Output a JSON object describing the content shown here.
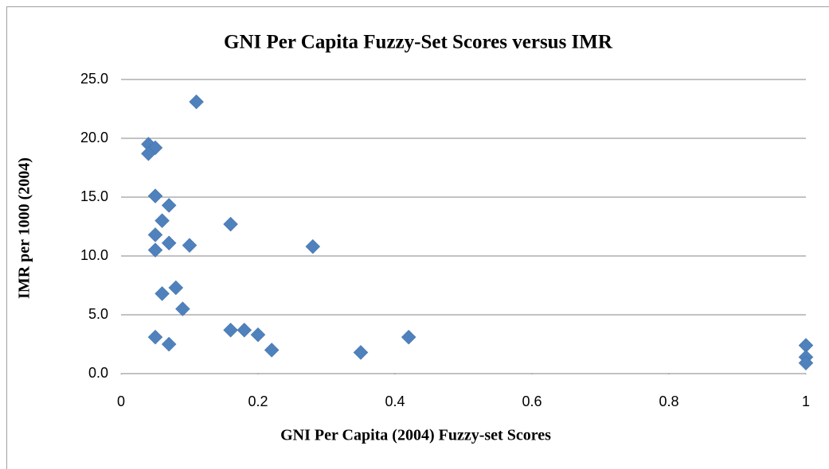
{
  "chart_data": {
    "type": "scatter",
    "title": "GNI Per Capita Fuzzy-Set Scores versus IMR",
    "x_label": "GNI Per Capita (2004) Fuzzy-set Scores",
    "y_label": "IMR per 1000 (2004)",
    "color": "#4f81bd",
    "grid": true,
    "x": [
      0.11,
      0.04,
      0.05,
      0.04,
      0.05,
      0.07,
      0.06,
      0.16,
      0.05,
      0.07,
      0.1,
      0.28,
      0.05,
      0.08,
      0.06,
      0.09,
      0.16,
      0.18,
      0.2,
      0.05,
      0.42,
      0.07,
      0.22,
      0.35,
      1,
      1,
      1
    ],
    "values": [
      23.1,
      19.5,
      19.2,
      18.7,
      15.1,
      14.3,
      13.0,
      12.7,
      11.8,
      11.1,
      10.9,
      10.8,
      10.5,
      7.3,
      6.8,
      5.5,
      3.7,
      3.7,
      3.3,
      3.1,
      3.1,
      2.5,
      2.0,
      1.8,
      2.4,
      1.4,
      0.9
    ],
    "xlim": [
      0,
      1
    ],
    "xticks": [
      0,
      0.2,
      0.4,
      0.6,
      0.8,
      1
    ],
    "ylim": [
      0,
      25
    ],
    "yticks": [
      {
        "value": 0,
        "label": "0.0"
      },
      {
        "value": 5,
        "label": "5.0"
      },
      {
        "value": 10,
        "label": "10.0"
      },
      {
        "value": 15,
        "label": "15.0"
      },
      {
        "value": 20,
        "label": "20.0"
      },
      {
        "value": 25,
        "label": "25.0"
      }
    ]
  }
}
